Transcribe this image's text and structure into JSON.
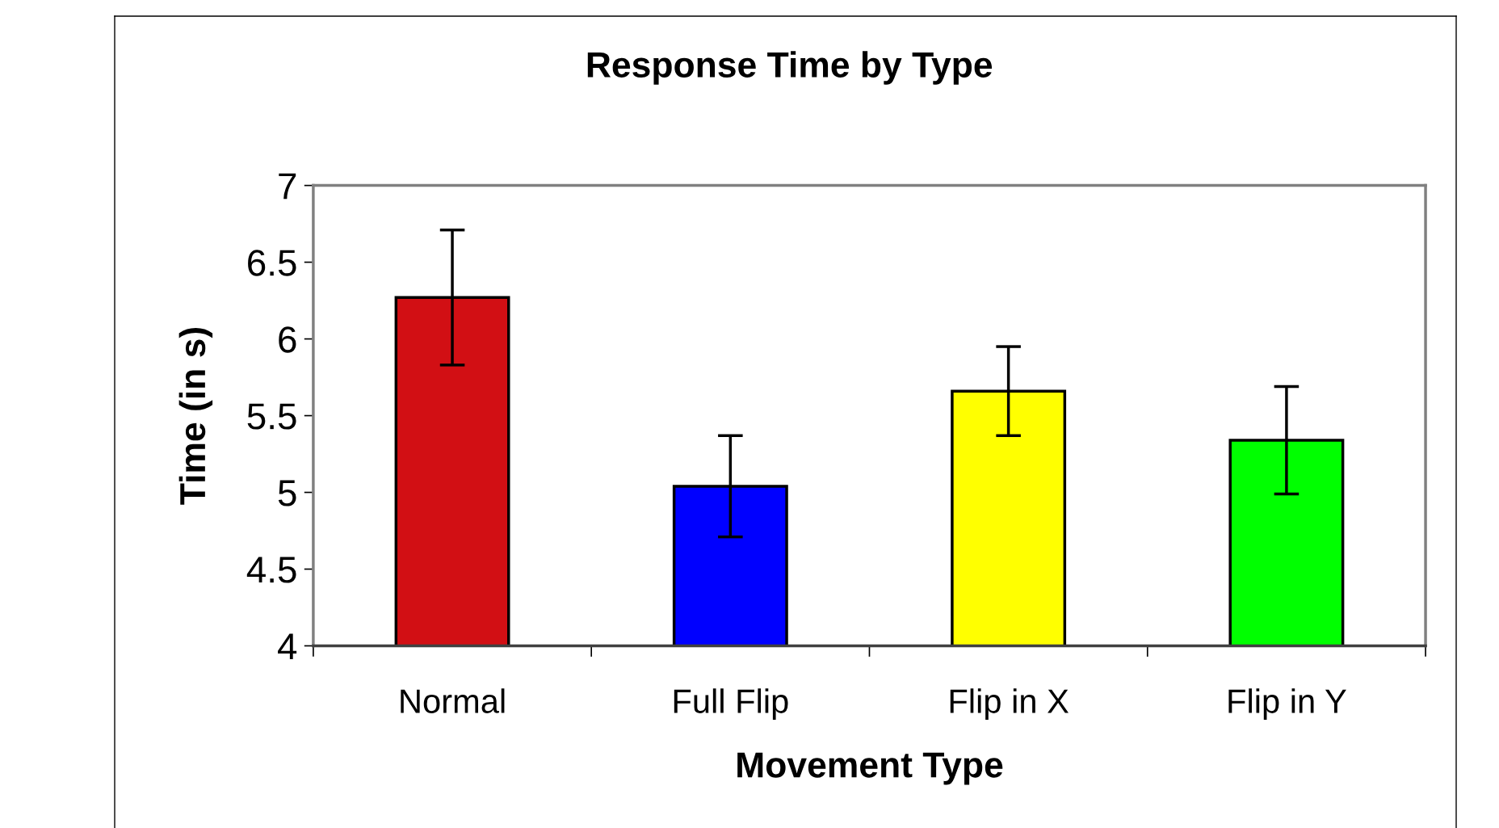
{
  "chart_data": {
    "type": "bar",
    "title": "Response Time by Type",
    "xlabel": "Movement Type",
    "ylabel": "Time (in s)",
    "categories": [
      "Normal",
      "Full Flip",
      "Flip in X",
      "Flip in Y"
    ],
    "values": [
      6.27,
      5.04,
      5.66,
      5.34
    ],
    "errors": [
      0.44,
      0.33,
      0.29,
      0.35
    ],
    "colors": [
      "#d20f14",
      "#0000ff",
      "#ffff00",
      "#00ff00"
    ],
    "ylim": [
      4,
      7
    ],
    "yticks": [
      4,
      4.5,
      5,
      5.5,
      6,
      6.5,
      7
    ],
    "grid": false,
    "legend": false
  }
}
